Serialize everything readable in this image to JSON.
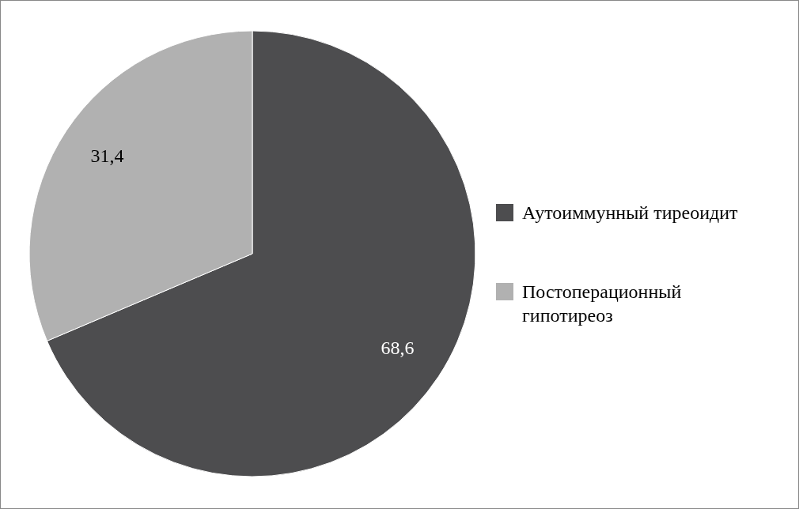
{
  "chart_data": {
    "type": "pie",
    "categories": [
      "Аутоиммунный тиреоидит",
      "Постоперационный гипотиреоз"
    ],
    "values": [
      68.6,
      31.4
    ],
    "colors": [
      "#4d4d4f",
      "#b1b1b1"
    ],
    "value_labels": [
      "68,6",
      "31,4"
    ],
    "legend": "right"
  }
}
